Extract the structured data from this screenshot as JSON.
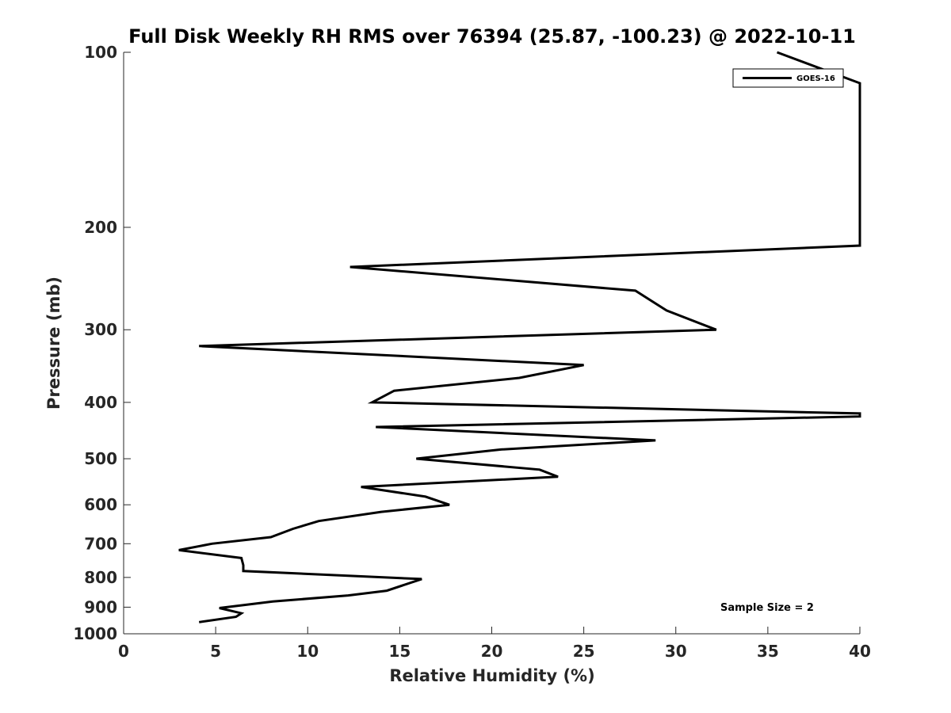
{
  "chart_data": {
    "type": "line",
    "title": "Full Disk Weekly RH RMS over 76394 (25.87, -100.23) @ 2022-10-11",
    "xlabel": "Relative Humidity (%)",
    "ylabel": "Pressure (mb)",
    "xlim": [
      0,
      40
    ],
    "ylim": [
      100,
      1000
    ],
    "yscale": "log",
    "y_reversed": true,
    "xticks": [
      0,
      5,
      10,
      15,
      20,
      25,
      30,
      35,
      40
    ],
    "yticks": [
      100,
      200,
      300,
      400,
      500,
      600,
      700,
      800,
      900,
      1000
    ],
    "grid": false,
    "legend_position": "top-right",
    "series": [
      {
        "name": "GOES-16",
        "color": "#000000",
        "points": [
          {
            "x": 35.5,
            "y": 100
          },
          {
            "x": 40.0,
            "y": 113
          },
          {
            "x": 40.0,
            "y": 215
          },
          {
            "x": 12.3,
            "y": 234
          },
          {
            "x": 27.8,
            "y": 257
          },
          {
            "x": 29.5,
            "y": 278
          },
          {
            "x": 32.2,
            "y": 300
          },
          {
            "x": 4.1,
            "y": 320
          },
          {
            "x": 25.0,
            "y": 345
          },
          {
            "x": 21.5,
            "y": 363
          },
          {
            "x": 14.7,
            "y": 382
          },
          {
            "x": 13.5,
            "y": 400
          },
          {
            "x": 40.0,
            "y": 418
          },
          {
            "x": 40.0,
            "y": 423
          },
          {
            "x": 13.7,
            "y": 441
          },
          {
            "x": 28.9,
            "y": 465
          },
          {
            "x": 20.5,
            "y": 482
          },
          {
            "x": 15.9,
            "y": 500
          },
          {
            "x": 22.6,
            "y": 522
          },
          {
            "x": 23.6,
            "y": 537
          },
          {
            "x": 12.9,
            "y": 559
          },
          {
            "x": 16.4,
            "y": 581
          },
          {
            "x": 17.7,
            "y": 600
          },
          {
            "x": 14.0,
            "y": 617
          },
          {
            "x": 10.6,
            "y": 640
          },
          {
            "x": 9.2,
            "y": 660
          },
          {
            "x": 8.0,
            "y": 682
          },
          {
            "x": 4.8,
            "y": 700
          },
          {
            "x": 3.0,
            "y": 718
          },
          {
            "x": 6.4,
            "y": 741
          },
          {
            "x": 6.5,
            "y": 762
          },
          {
            "x": 6.5,
            "y": 780
          },
          {
            "x": 16.2,
            "y": 805
          },
          {
            "x": 14.3,
            "y": 843
          },
          {
            "x": 12.2,
            "y": 859
          },
          {
            "x": 8.1,
            "y": 880
          },
          {
            "x": 5.2,
            "y": 903
          },
          {
            "x": 6.4,
            "y": 922
          },
          {
            "x": 6.1,
            "y": 935
          },
          {
            "x": 4.1,
            "y": 955
          }
        ]
      }
    ],
    "annotations": [
      {
        "text": "Sample Size = 2"
      }
    ]
  }
}
